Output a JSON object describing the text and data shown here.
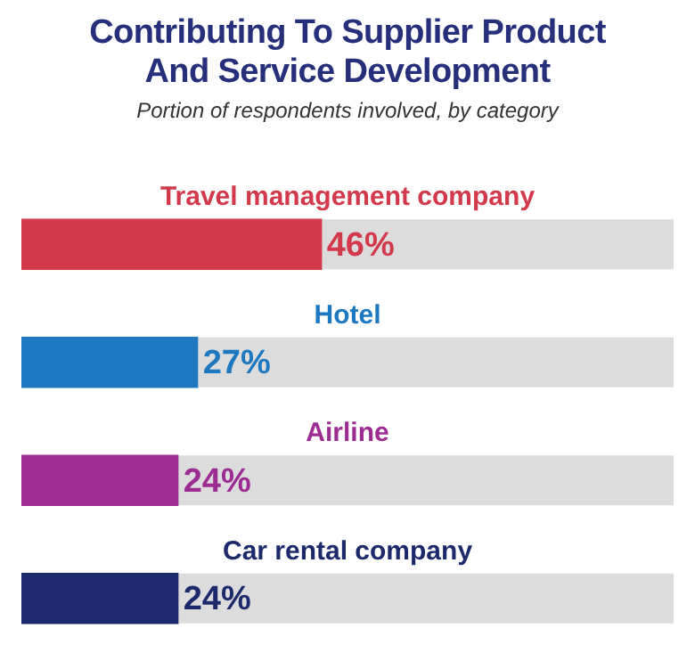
{
  "chart_data": {
    "type": "bar",
    "orientation": "horizontal",
    "title": "Contributing To Supplier Product And Service Development",
    "subtitle": "Portion of respondents involved, by category",
    "categories": [
      "Travel management company",
      "Hotel",
      "Airline",
      "Car rental company"
    ],
    "values": [
      46,
      27,
      24,
      24
    ],
    "colors": [
      "#d2394a",
      "#1b78c1",
      "#9c2b92",
      "#1c2a6b"
    ],
    "value_labels": [
      "46%",
      "27%",
      "24%",
      "24%"
    ],
    "xlim": [
      0,
      100
    ],
    "legend": false
  }
}
